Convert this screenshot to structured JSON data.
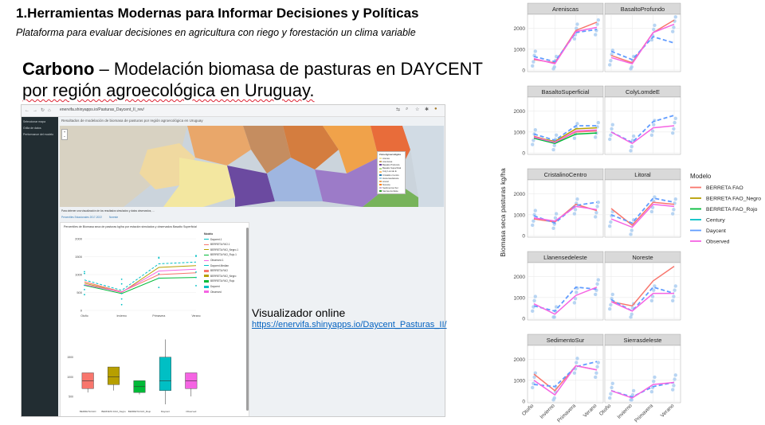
{
  "slide": {
    "title": "1.Herramientas Modernas para Informar Decisiones y Políticas",
    "subtitle": "Plataforma para evaluar decisiones en agricultura con riego y forestación un clima variable",
    "heading_bold": "Carbono",
    "heading_rest_1": " – Modelación biomasa de pasturas en DAYCENT",
    "heading_rest_2": "por región agroecológica en Uruguay."
  },
  "browser": {
    "url": "enervifa.shinyapps.io/Pasturas_Daycent_II_rev/",
    "sidebar_items": [
      "Seleccionar mapa",
      "Grilla de datos",
      "Performance del modelo"
    ],
    "app_title": "Resultados de modelación de biomasa de pasturas por región agroecológica en Uruguay",
    "map_legend_title": "Zona Agroecológica",
    "map_legend_items": [
      "Arenas",
      "Areniscas",
      "Basalto Profundo",
      "Basalto Superficial",
      "Coly Lomde E",
      "Cristalino Centro",
      "Llanensedeleste",
      "Litoral",
      "Noreste",
      "Sedimentos Sur",
      "Sierras del Este"
    ],
    "map_legend_colors": [
      "#f2e59a",
      "#c9a66b",
      "#6a3d9a",
      "#b2df8a",
      "#fdbf6f",
      "#1f78b4",
      "#a6cee3",
      "#e7a15a",
      "#ff7f00",
      "#cab2d6",
      "#33a02c"
    ],
    "info_text": "Para obtener una visualización de los resultados simulados y datos observados, ...",
    "tabs": [
      "Percentiles Estacionales 2017-2022",
      "Noreste"
    ],
    "panel_title": "Percentiles de Biomasa seca de pasturas kg/ha por estación simulados y observados Basalto Superficial",
    "mini_legend_title": "Modelo",
    "mini_legend_items": [
      "Daycent.1",
      "BERRETA FAO.1",
      "BERRETA FAO_Negro.1",
      "BERRETA FAO_Rojo.1",
      "Observed.1",
      "Daycent.Median",
      "BERRETA FAO",
      "BERRETA FAO_Negro",
      "BERRETA FAO_Rojo",
      "Daycent",
      "Observed"
    ],
    "mini_line_chart": {
      "type": "line",
      "categories": [
        "Otoño",
        "Invierno",
        "Primavera",
        "Verano"
      ],
      "series": [
        {
          "name": "BERRETA FAO",
          "values": [
            800,
            520,
            1000,
            1050
          ]
        },
        {
          "name": "BERRETA FAO_Negro",
          "values": [
            760,
            500,
            1200,
            1250
          ]
        },
        {
          "name": "BERRETA FAO_Rojo",
          "values": [
            700,
            470,
            900,
            920
          ]
        },
        {
          "name": "Daycent",
          "values": [
            850,
            560,
            1300,
            1350
          ]
        },
        {
          "name": "Observed",
          "values": [
            720,
            510,
            1100,
            1150
          ]
        }
      ],
      "yticks": [
        "2000",
        "1500",
        "1000",
        "500",
        "0"
      ],
      "ylim": [
        0,
        2000
      ]
    },
    "mini_box_chart": {
      "type": "box",
      "categories": [
        "BERRETA FAO",
        "BERRETA FAO_Negro",
        "BERRETA FAO_Rojo",
        "Daycent",
        "Observed"
      ],
      "colors": [
        "#f8766d",
        "#b79f00",
        "#00ba38",
        "#00bfc4",
        "#f564e3"
      ],
      "boxes": [
        {
          "q1": 700,
          "med": 900,
          "q3": 1100,
          "min": 600,
          "max": 1100
        },
        {
          "q1": 800,
          "med": 1000,
          "q3": 1250,
          "min": 650,
          "max": 1250
        },
        {
          "q1": 600,
          "med": 750,
          "q3": 900,
          "min": 550,
          "max": 900
        },
        {
          "q1": 650,
          "med": 900,
          "q3": 1500,
          "min": 300,
          "max": 1950
        },
        {
          "q1": 700,
          "med": 900,
          "q3": 1100,
          "min": 500,
          "max": 1100
        }
      ],
      "yticks": [
        "1500",
        "1000",
        "500"
      ],
      "ylim": [
        300,
        2000
      ]
    }
  },
  "visualizer": {
    "label": "Visualizador online",
    "url": "https://enervifa.shinyapps.io/Daycent_Pasturas_II/"
  },
  "chart_data": {
    "type": "line",
    "ylabel": "Biomasa seca pasturas kg/ha",
    "categories": [
      "Otoño",
      "Invierno",
      "Primavera",
      "Verano"
    ],
    "xtick_labels": [
      "Otoño",
      "Invierno",
      "Primavera",
      "Verano"
    ],
    "ylim": [
      0,
      2600
    ],
    "yticks": [
      0,
      1000,
      2000
    ],
    "legend_title": "Modelo",
    "legend_position": "right",
    "series_colors": {
      "BERRETA FAO": "#f8766d",
      "BERRETA FAO_Negro": "#b79f00",
      "BERRETA FAO_Rojo": "#00ba38",
      "Century": "#00bfc4",
      "Daycent": "#619cff",
      "Observed": "#f564e3"
    },
    "legend": [
      "BERRETA FAO",
      "BERRETA FAO_Negro",
      "BERRETA FAO_Rojo",
      "Century",
      "Daycent",
      "Observed"
    ],
    "panels": [
      {
        "name": "Areniscas",
        "series": {
          "BERRETA FAO": [
            500,
            350,
            1900,
            2300
          ],
          "Daycent": [
            650,
            400,
            1800,
            1950
          ],
          "Observed": [
            550,
            300,
            1850,
            2050
          ]
        }
      },
      {
        "name": "BasaltoProfundo",
        "series": {
          "BERRETA FAO": [
            700,
            350,
            1800,
            2400
          ],
          "Daycent": [
            900,
            500,
            1600,
            1300
          ],
          "Observed": [
            600,
            300,
            1800,
            2200
          ]
        }
      },
      {
        "name": "BasaltoSuperficial",
        "series": {
          "BERRETA FAO": [
            800,
            500,
            1000,
            1050
          ],
          "BERRETA FAO_Negro": [
            750,
            550,
            1150,
            1200
          ],
          "BERRETA FAO_Rojo": [
            700,
            450,
            900,
            950
          ],
          "Daycent": [
            900,
            600,
            1300,
            1300
          ],
          "Observed": [
            750,
            500,
            1050,
            1100
          ]
        }
      },
      {
        "name": "ColyLomdeE",
        "series": {
          "Daycent": [
            1000,
            500,
            1500,
            1800
          ],
          "Observed": [
            1000,
            450,
            1200,
            1300
          ]
        }
      },
      {
        "name": "CristalinoCentro",
        "series": {
          "BERRETA FAO": [
            800,
            650,
            1500,
            1200
          ],
          "Daycent": [
            950,
            600,
            1450,
            1600
          ],
          "Observed": [
            850,
            700,
            1400,
            1250
          ]
        }
      },
      {
        "name": "Litoral",
        "series": {
          "BERRETA FAO": [
            1300,
            500,
            1600,
            1500
          ],
          "Daycent": [
            1000,
            600,
            1800,
            1600
          ],
          "Observed": [
            800,
            400,
            1500,
            1400
          ]
        }
      },
      {
        "name": "Llanensedeleste",
        "series": {
          "Daycent": [
            600,
            350,
            1500,
            1400
          ],
          "Observed": [
            700,
            200,
            1100,
            1500
          ]
        }
      },
      {
        "name": "Noreste",
        "series": {
          "BERRETA FAO": [
            800,
            600,
            1800,
            2500
          ],
          "Daycent": [
            900,
            350,
            1500,
            1200
          ],
          "Observed": [
            800,
            350,
            1200,
            1200
          ]
        }
      },
      {
        "name": "SedimentoSur",
        "series": {
          "BERRETA FAO": [
            1300,
            500,
            1700,
            1500
          ],
          "Daycent": [
            800,
            700,
            1650,
            1900
          ],
          "Observed": [
            1000,
            300,
            1700,
            1500
          ]
        }
      },
      {
        "name": "Sierrasdeleste",
        "series": {
          "Daycent": [
            500,
            200,
            700,
            900
          ],
          "Observed": [
            500,
            150,
            800,
            900
          ]
        }
      }
    ]
  }
}
